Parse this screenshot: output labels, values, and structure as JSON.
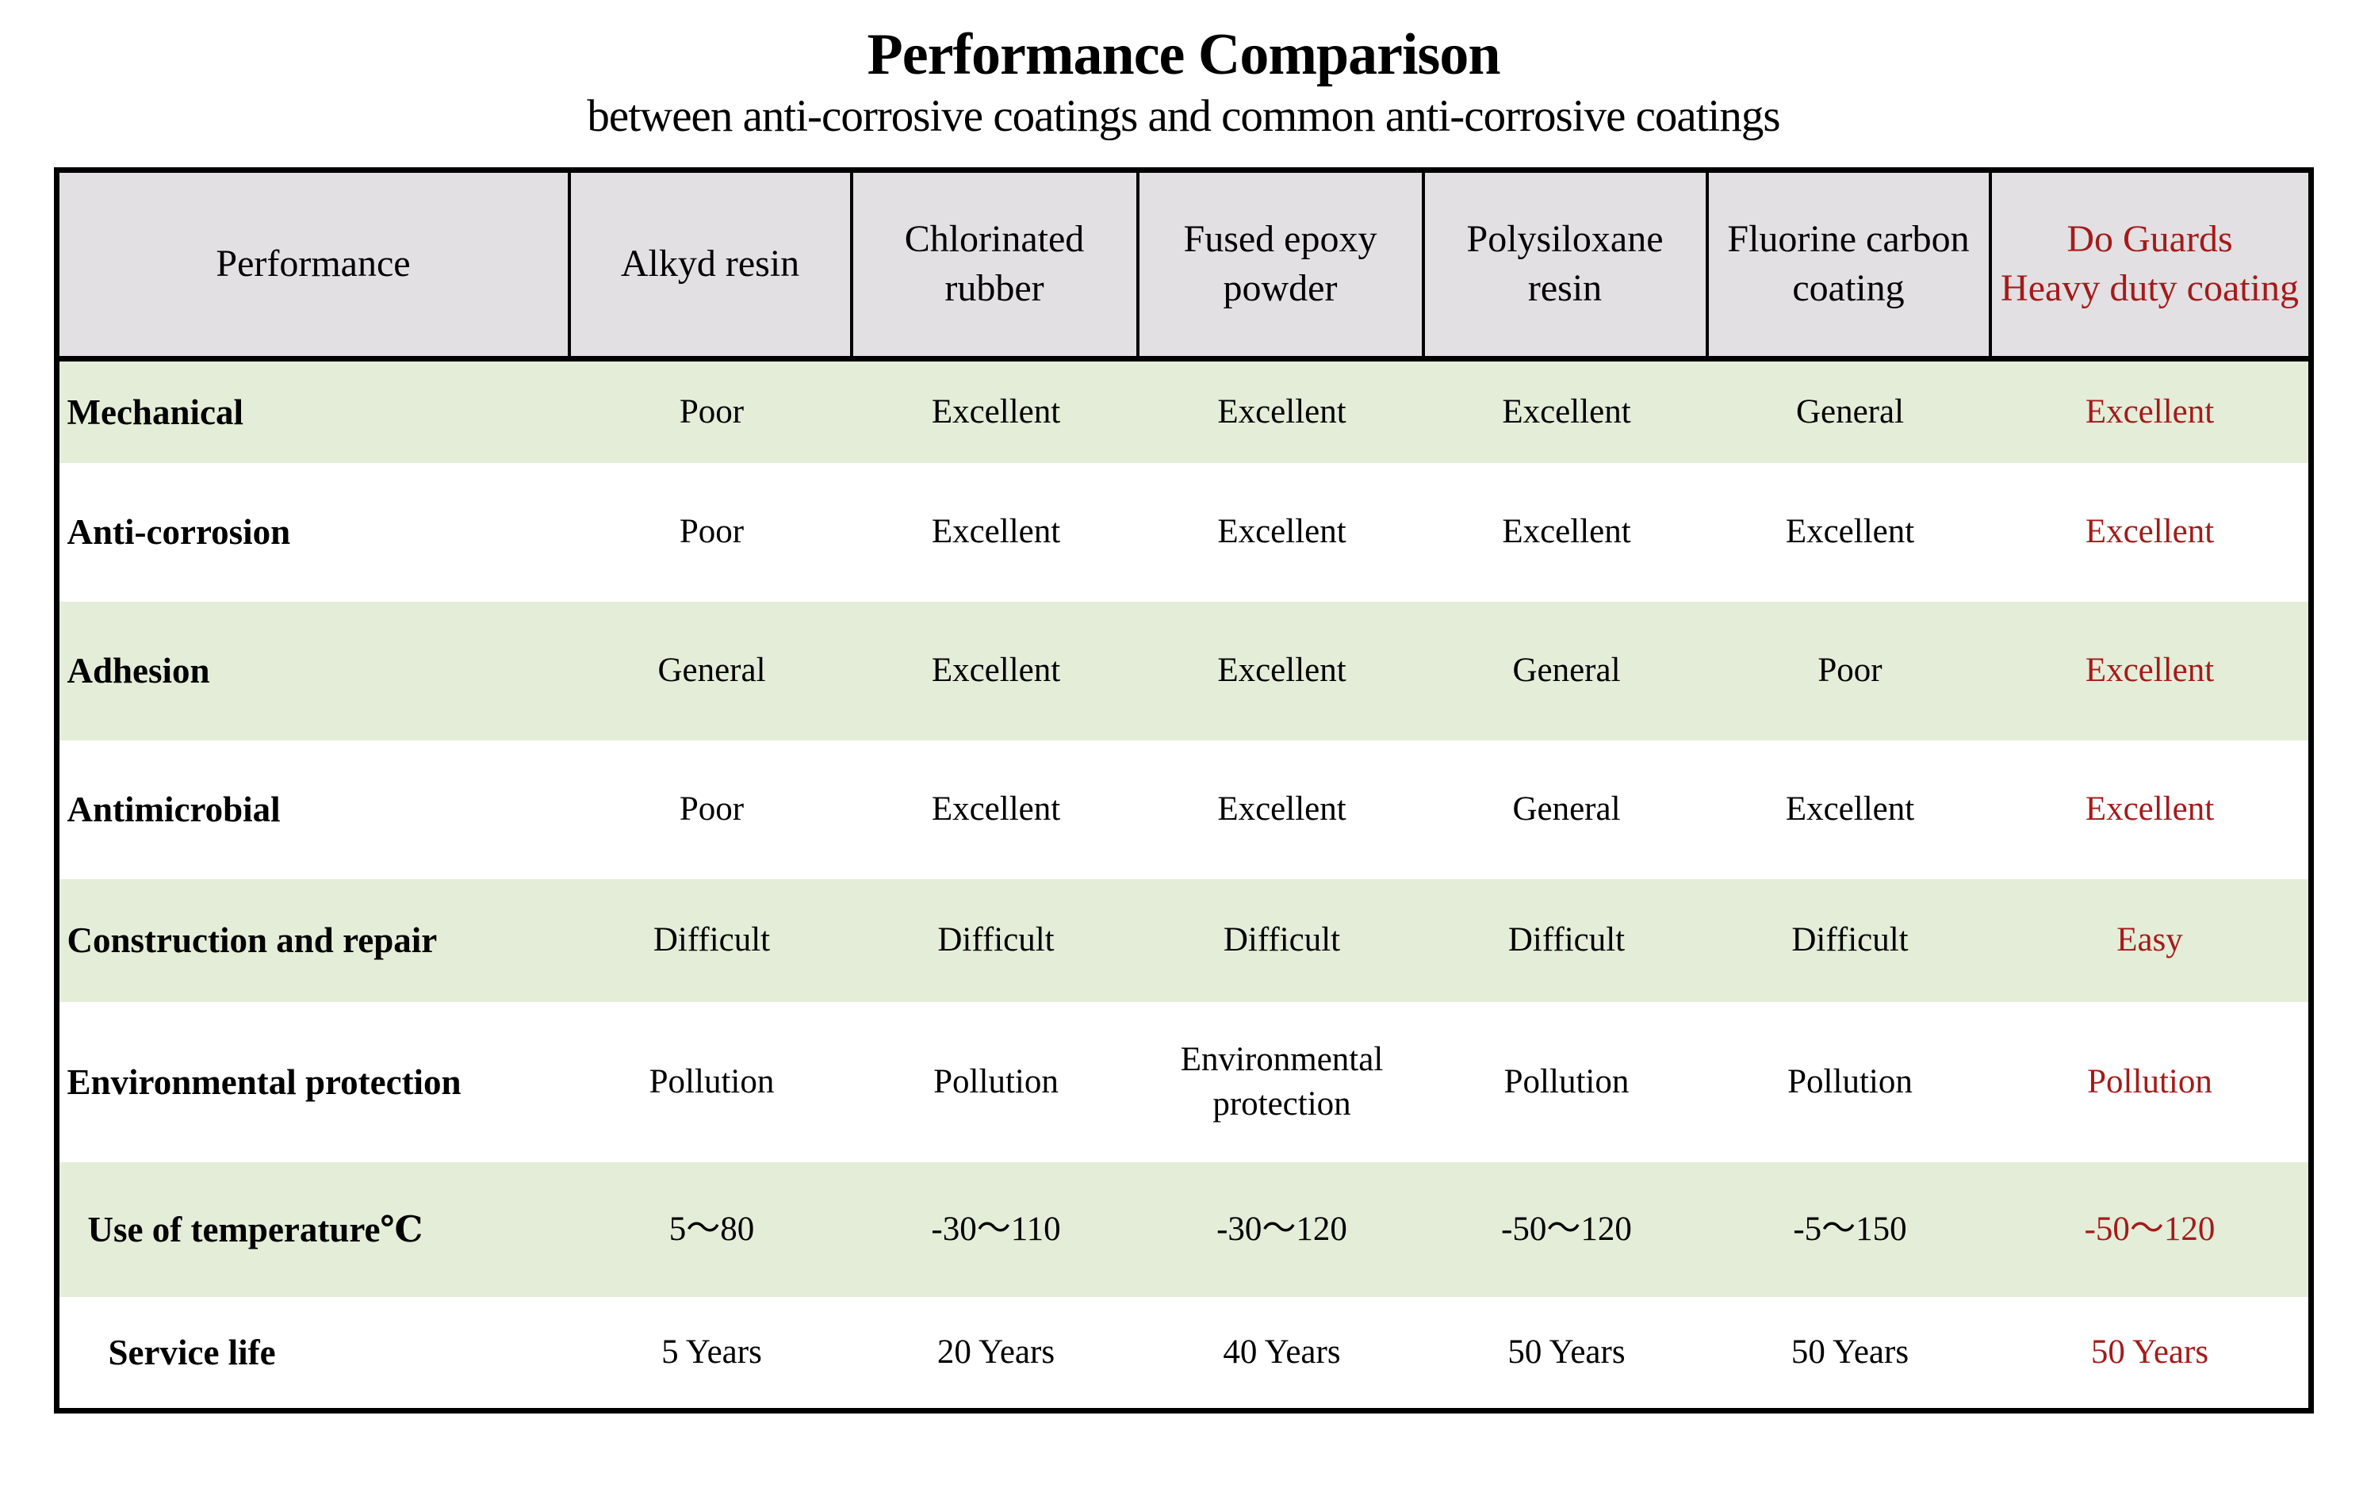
{
  "title": "Performance Comparison",
  "subtitle": "between anti-corrosive coatings and common anti-corrosive coatings",
  "colors": {
    "accent_red": "#a51a1a",
    "row_green": "#e4edd8",
    "header_gray": "#e2e0e2",
    "border_black": "#000000"
  },
  "table": {
    "columns": [
      "Performance",
      "Alkyd resin",
      "Chlorinated\nrubber",
      "Fused epoxy\npowder",
      "Polysiloxane\nresin",
      "Fluorine carbon\ncoating",
      "Do Guards\nHeavy duty coating"
    ],
    "rows": [
      {
        "label": "Mechanical",
        "values": [
          "Poor",
          "Excellent",
          "Excellent",
          "Excellent",
          "General",
          "Excellent"
        ]
      },
      {
        "label": "Anti-corrosion",
        "values": [
          "Poor",
          "Excellent",
          "Excellent",
          "Excellent",
          "Excellent",
          "Excellent"
        ]
      },
      {
        "label": "Adhesion",
        "values": [
          "General",
          "Excellent",
          "Excellent",
          "General",
          "Poor",
          "Excellent"
        ]
      },
      {
        "label": "Antimicrobial",
        "values": [
          "Poor",
          "Excellent",
          "Excellent",
          "General",
          "Excellent",
          "Excellent"
        ]
      },
      {
        "label": "Construction and repair",
        "values": [
          "Difficult",
          "Difficult",
          "Difficult",
          "Difficult",
          "Difficult",
          "Easy"
        ]
      },
      {
        "label": "Environmental protection",
        "values": [
          "Pollution",
          "Pollution",
          "Environmental\nprotection",
          "Pollution",
          "Pollution",
          "Pollution"
        ]
      },
      {
        "label": "Use of temperature℃",
        "values": [
          "5～80",
          "-30～110",
          "-30～120",
          "-50～120",
          "-5～150",
          "-50～120"
        ]
      },
      {
        "label": "Service life",
        "values": [
          "5 Years",
          "20 Years",
          "40 Years",
          "50 Years",
          "50 Years",
          "50 Years"
        ]
      }
    ]
  }
}
